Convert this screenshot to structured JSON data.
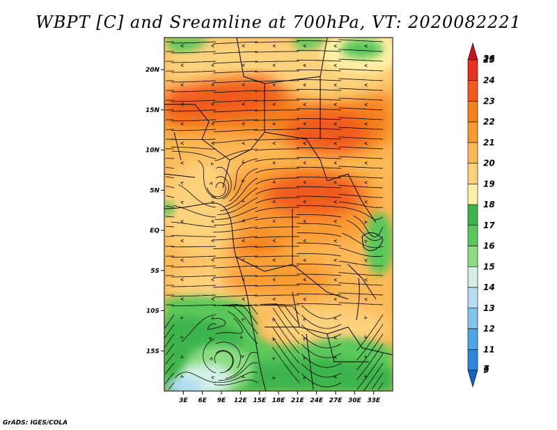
{
  "title": "WBPT [C] and Sreamline at 700hPa, VT: 2020082221",
  "credit": "GrADS: IGES/COLA",
  "map": {
    "lon_range": [
      0,
      36
    ],
    "lat_range": [
      -20,
      24
    ],
    "lat_ticks": [
      {
        "value": 20,
        "label": "20N"
      },
      {
        "value": 15,
        "label": "15N"
      },
      {
        "value": 10,
        "label": "10N"
      },
      {
        "value": 5,
        "label": "5N"
      },
      {
        "value": 0,
        "label": "EQ"
      },
      {
        "value": -5,
        "label": "5S"
      },
      {
        "value": -10,
        "label": "10S"
      },
      {
        "value": -15,
        "label": "15S"
      }
    ],
    "lon_ticks": [
      {
        "value": 3,
        "label": "3E"
      },
      {
        "value": 6,
        "label": "6E"
      },
      {
        "value": 9,
        "label": "9E"
      },
      {
        "value": 12,
        "label": "12E"
      },
      {
        "value": 15,
        "label": "15E"
      },
      {
        "value": 18,
        "label": "18E"
      },
      {
        "value": 21,
        "label": "21E"
      },
      {
        "value": 24,
        "label": "24E"
      },
      {
        "value": 27,
        "label": "27E"
      },
      {
        "value": 30,
        "label": "30E"
      },
      {
        "value": 33,
        "label": "33E"
      }
    ]
  },
  "colorbar": {
    "levels": [
      "26",
      "25",
      "24",
      "23",
      "22",
      "21",
      "20",
      "19",
      "18",
      "17",
      "16",
      "15",
      "14",
      "13",
      "12",
      "11",
      "9",
      "7"
    ],
    "colors": [
      "#c8141e",
      "#e8321e",
      "#f05a1e",
      "#f5821e",
      "#fa9b32",
      "#fdb957",
      "#fdd27d",
      "#fff0a5",
      "#3cb44b",
      "#5ac85a",
      "#8cdc82",
      "#d2f0e6",
      "#b4dcf5",
      "#82c3f0",
      "#4ba5e6",
      "#2a87dc",
      "#1464c8"
    ]
  }
}
